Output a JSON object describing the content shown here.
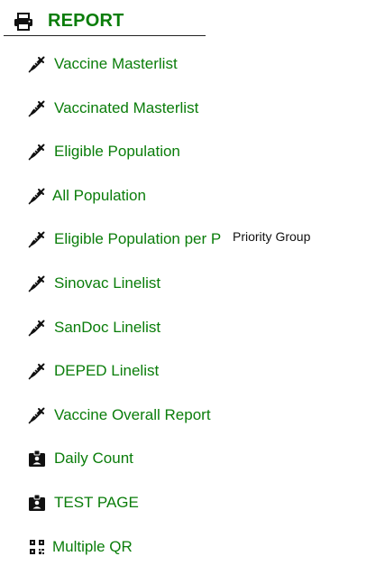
{
  "report": {
    "title": "REPORT",
    "icon": "printer-icon"
  },
  "menu": {
    "items": [
      {
        "label": "Vaccine Masterlist",
        "icon": "syringe-icon"
      },
      {
        "label": "Vaccinated Masterlist",
        "icon": "syringe-icon"
      },
      {
        "label": "Eligible Population",
        "icon": "syringe-icon"
      },
      {
        "label": "All Population",
        "icon": "syringe-icon"
      },
      {
        "label": "Eligible Population per P",
        "icon": "syringe-icon"
      },
      {
        "label": "Sinovac Linelist",
        "icon": "syringe-icon"
      },
      {
        "label": "SanDoc Linelist",
        "icon": "syringe-icon"
      },
      {
        "label": "DEPED Linelist",
        "icon": "syringe-icon"
      },
      {
        "label": "Vaccine Overall Report",
        "icon": "syringe-icon"
      },
      {
        "label": "Daily Count",
        "icon": "id-badge-icon"
      },
      {
        "label": "TEST PAGE",
        "icon": "id-badge-icon"
      },
      {
        "label": "Multiple QR",
        "icon": "qr-code-icon"
      }
    ]
  },
  "tooltip": {
    "text": "Priority Group"
  },
  "colors": {
    "accent": "#0a7d0a",
    "icon": "#111111"
  }
}
